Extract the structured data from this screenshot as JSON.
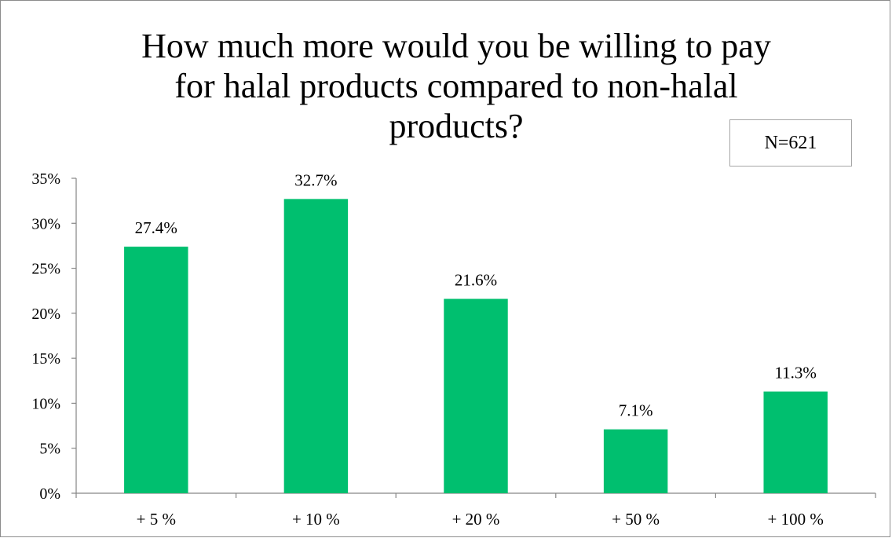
{
  "chart_data": {
    "type": "bar",
    "title": "How much more would you be willing to pay\nfor halal products compared to non-halal\nproducts?",
    "annotation": "N=621",
    "categories": [
      "+ 5 %",
      "+ 10 %",
      "+ 20 %",
      "+ 50 %",
      "+ 100 %"
    ],
    "values": [
      27.4,
      32.7,
      21.6,
      7.1,
      11.3
    ],
    "data_labels": [
      "27.4%",
      "32.7%",
      "21.6%",
      "7.1%",
      "11.3%"
    ],
    "ylim": [
      0,
      35
    ],
    "yticks": [
      0,
      5,
      10,
      15,
      20,
      25,
      30,
      35
    ],
    "ytick_labels": [
      "0%",
      "5%",
      "10%",
      "15%",
      "20%",
      "25%",
      "30%",
      "35%"
    ],
    "xlabel": "",
    "ylabel": "",
    "grid": false,
    "legend": "none",
    "bar_color": "#00bf6f"
  }
}
